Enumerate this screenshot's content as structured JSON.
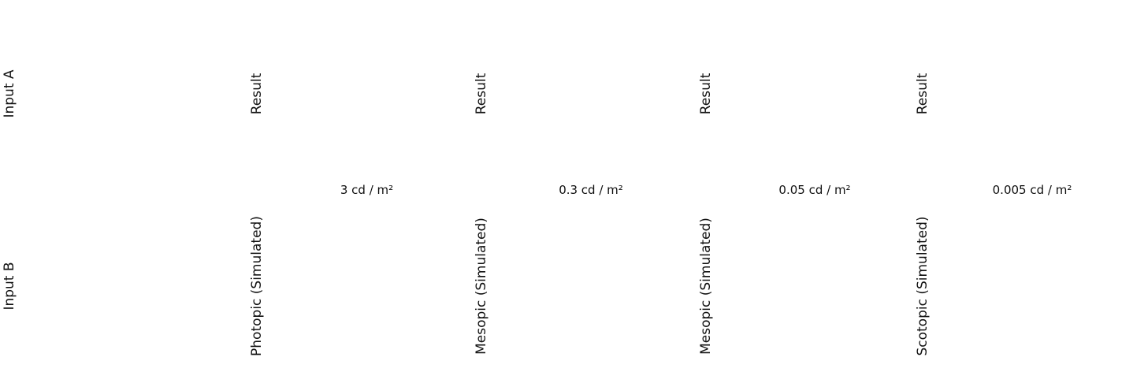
{
  "inputs": [
    {
      "label": "Input A"
    },
    {
      "label": "Input B"
    }
  ],
  "results": [
    {
      "top_label": "Result",
      "luminance": "3 cd / m²",
      "bottom_label": "Photopic  (Simulated)"
    },
    {
      "top_label": "Result",
      "luminance": "0.3 cd / m²",
      "bottom_label": "Mesopic (Simulated)"
    },
    {
      "top_label": "Result",
      "luminance": "0.05 cd / m²",
      "bottom_label": "Mesopic (Simulated)"
    },
    {
      "top_label": "Result",
      "luminance": "0.005 cd / m²",
      "bottom_label": "Scotopic (Simulated)"
    }
  ]
}
